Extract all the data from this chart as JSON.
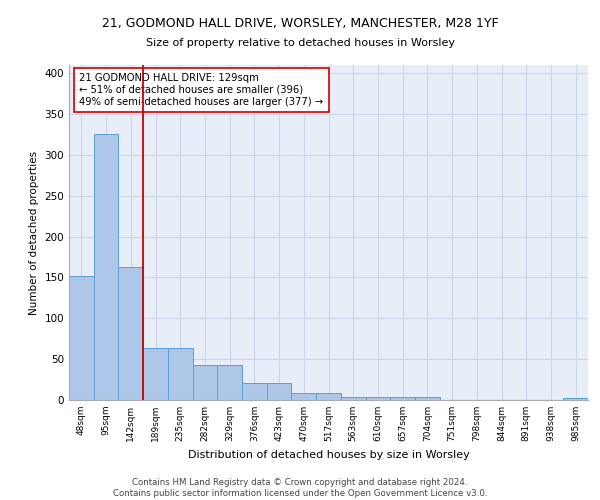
{
  "title1": "21, GODMOND HALL DRIVE, WORSLEY, MANCHESTER, M28 1YF",
  "title2": "Size of property relative to detached houses in Worsley",
  "xlabel": "Distribution of detached houses by size in Worsley",
  "ylabel": "Number of detached properties",
  "categories": [
    "48sqm",
    "95sqm",
    "142sqm",
    "189sqm",
    "235sqm",
    "282sqm",
    "329sqm",
    "376sqm",
    "423sqm",
    "470sqm",
    "517sqm",
    "563sqm",
    "610sqm",
    "657sqm",
    "704sqm",
    "751sqm",
    "798sqm",
    "844sqm",
    "891sqm",
    "938sqm",
    "985sqm"
  ],
  "values": [
    152,
    326,
    163,
    64,
    64,
    43,
    43,
    21,
    21,
    8,
    8,
    4,
    4,
    4,
    4,
    0,
    0,
    0,
    0,
    0,
    3
  ],
  "bar_color": "#aec6e8",
  "bar_edge_color": "#5a9fd4",
  "vline_x": 2.5,
  "vline_color": "#cc0000",
  "annotation_text": "21 GODMOND HALL DRIVE: 129sqm\n← 51% of detached houses are smaller (396)\n49% of semi-detached houses are larger (377) →",
  "annotation_box_color": "white",
  "annotation_box_edge": "#cc0000",
  "ylim": [
    0,
    410
  ],
  "yticks": [
    0,
    50,
    100,
    150,
    200,
    250,
    300,
    350,
    400
  ],
  "grid_color": "#ccd6e8",
  "background_color": "#e8eef8",
  "footer": "Contains HM Land Registry data © Crown copyright and database right 2024.\nContains public sector information licensed under the Open Government Licence v3.0."
}
